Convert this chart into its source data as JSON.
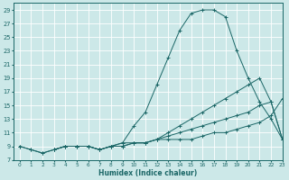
{
  "xlabel": "Humidex (Indice chaleur)",
  "bg_color": "#cce8e8",
  "grid_color": "#ffffff",
  "line_color": "#1a6666",
  "xlim": [
    -0.5,
    23
  ],
  "ylim": [
    7,
    30
  ],
  "xticks": [
    0,
    1,
    2,
    3,
    4,
    5,
    6,
    7,
    8,
    9,
    10,
    11,
    12,
    13,
    14,
    15,
    16,
    17,
    18,
    19,
    20,
    21,
    22,
    23
  ],
  "yticks": [
    7,
    9,
    11,
    13,
    15,
    17,
    19,
    21,
    23,
    25,
    27,
    29
  ],
  "line1_x": [
    0,
    1,
    2,
    3,
    4,
    5,
    6,
    7,
    8,
    9,
    10,
    11,
    12,
    13,
    14,
    15,
    16,
    17,
    18,
    19,
    20,
    21,
    22,
    23
  ],
  "line1_y": [
    9,
    8.5,
    8,
    8.5,
    9,
    9,
    9,
    8.5,
    9,
    9.5,
    12,
    14,
    18,
    22,
    26,
    28.5,
    29,
    29,
    28,
    23,
    19,
    15.5,
    13,
    10
  ],
  "line2_x": [
    3,
    4,
    5,
    6,
    7,
    8,
    9,
    10,
    11,
    12,
    13,
    14,
    15,
    16,
    17,
    18,
    19,
    20,
    21,
    22,
    23
  ],
  "line2_y": [
    8.5,
    9,
    9,
    9,
    8.5,
    9,
    9,
    9.5,
    9.5,
    10,
    11,
    12,
    13,
    14,
    15,
    16,
    17,
    18,
    19,
    15.5,
    10
  ],
  "line3_x": [
    3,
    4,
    5,
    6,
    7,
    8,
    9,
    10,
    11,
    12,
    13,
    14,
    15,
    16,
    17,
    18,
    19,
    20,
    21,
    22,
    23
  ],
  "line3_y": [
    8.5,
    9,
    9,
    9,
    8.5,
    9,
    9,
    9.5,
    9.5,
    10,
    10.5,
    11,
    11.5,
    12,
    12.5,
    13,
    13.5,
    14,
    15,
    15.5,
    10
  ],
  "line4_x": [
    0,
    1,
    2,
    3,
    4,
    5,
    6,
    7,
    8,
    9,
    10,
    11,
    12,
    13,
    14,
    15,
    16,
    17,
    18,
    19,
    20,
    21,
    22,
    23
  ],
  "line4_y": [
    9,
    8.5,
    8,
    8.5,
    9,
    9,
    9,
    8.5,
    9,
    9.5,
    9.5,
    9.5,
    10,
    10,
    10,
    10,
    10.5,
    11,
    11,
    11.5,
    12,
    12.5,
    13.5,
    16
  ]
}
